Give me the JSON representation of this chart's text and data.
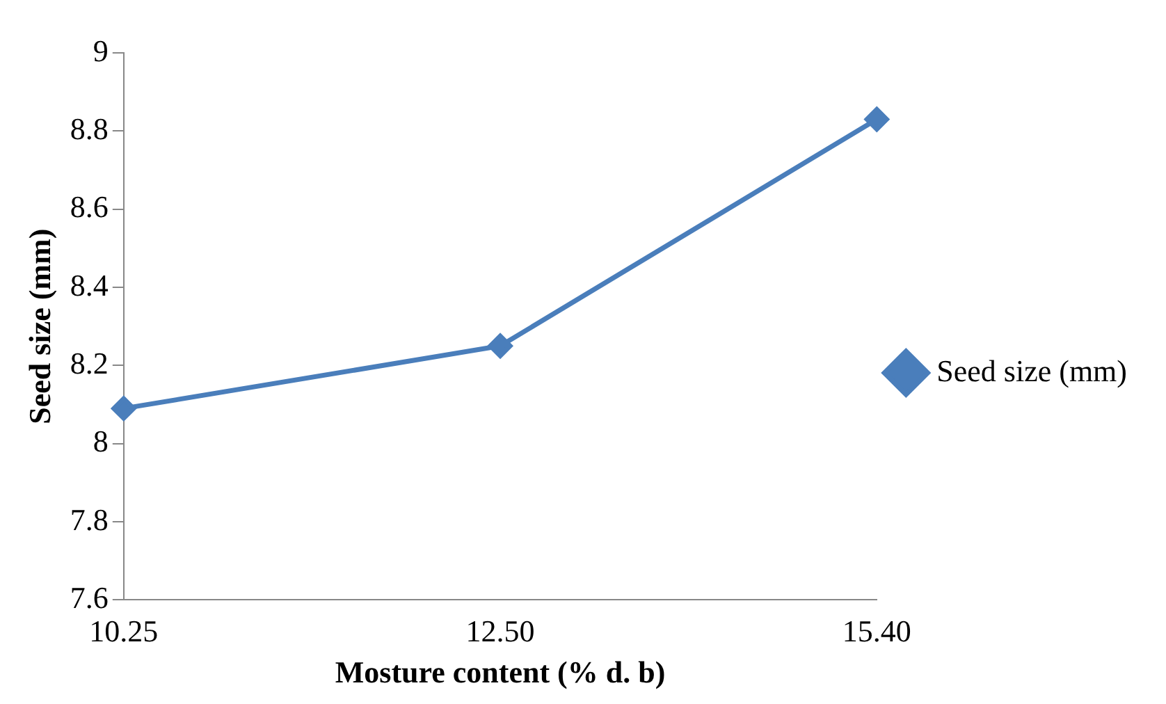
{
  "chart_data": {
    "type": "line",
    "xlabel": "Mosture content (% d. b)",
    "ylabel": "Seed size (mm)",
    "categories": [
      "10.25",
      "12.50",
      "15.40"
    ],
    "series": [
      {
        "name": "Seed size (mm)",
        "color": "#4a7ebb",
        "values": [
          8.09,
          8.25,
          8.83
        ]
      }
    ],
    "ylim": [
      7.6,
      9
    ],
    "yticks": [
      7.6,
      7.8,
      8,
      8.2,
      8.4,
      8.6,
      8.8,
      9
    ],
    "grid": false,
    "legend": "right",
    "marker": "diamond",
    "line_style": "solid"
  }
}
